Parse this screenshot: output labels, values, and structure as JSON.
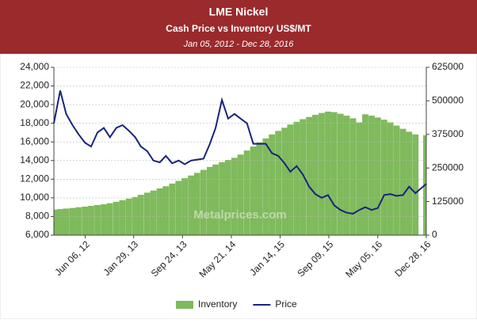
{
  "chart_data": {
    "type": "line",
    "title": "LME Nickel",
    "subtitle": "Cash Price vs Inventory US$/MT",
    "date_range": "Jan 05, 2012 - Dec 28, 2016",
    "watermark": "Metalprices.com",
    "x": [
      "2012-01-05",
      "2012-02-05",
      "2012-03-05",
      "2012-04-05",
      "2012-05-05",
      "2012-06-05",
      "2012-07-05",
      "2012-08-05",
      "2012-09-05",
      "2012-10-05",
      "2012-11-05",
      "2012-12-05",
      "2013-01-05",
      "2013-02-05",
      "2013-03-05",
      "2013-04-05",
      "2013-05-05",
      "2013-06-05",
      "2013-07-05",
      "2013-08-05",
      "2013-09-05",
      "2013-10-05",
      "2013-11-05",
      "2013-12-05",
      "2014-01-05",
      "2014-02-05",
      "2014-03-05",
      "2014-04-05",
      "2014-05-05",
      "2014-06-05",
      "2014-07-05",
      "2014-08-05",
      "2014-09-05",
      "2014-10-05",
      "2014-11-05",
      "2014-12-05",
      "2015-01-05",
      "2015-02-05",
      "2015-03-05",
      "2015-04-05",
      "2015-05-05",
      "2015-06-05",
      "2015-07-05",
      "2015-08-05",
      "2015-09-05",
      "2015-10-05",
      "2015-11-05",
      "2015-12-05",
      "2016-01-05",
      "2016-02-05",
      "2016-03-05",
      "2016-04-05",
      "2016-05-05",
      "2016-06-05",
      "2016-07-05",
      "2016-08-05",
      "2016-09-05",
      "2016-10-05",
      "2016-11-05",
      "2016-12-28"
    ],
    "xlim": [
      "2012-01-05",
      "2016-12-28"
    ],
    "xticks": [
      {
        "value": "2012-06-06",
        "label": "Jun 06, 12"
      },
      {
        "value": "2013-01-29",
        "label": "Jan 29, 13"
      },
      {
        "value": "2013-09-24",
        "label": "Sep 24, 13"
      },
      {
        "value": "2014-05-21",
        "label": "May 21, 14"
      },
      {
        "value": "2015-01-14",
        "label": "Jan 14, 15"
      },
      {
        "value": "2015-09-09",
        "label": "Sep 09, 15"
      },
      {
        "value": "2016-05-05",
        "label": "May 05, 16"
      },
      {
        "value": "2016-12-28",
        "label": "Dec 28, 16"
      }
    ],
    "ylim": [
      6000,
      24000
    ],
    "yticks": [
      {
        "value": 6000,
        "label": "6,000"
      },
      {
        "value": 8000,
        "label": "8,000"
      },
      {
        "value": 10000,
        "label": "10,000"
      },
      {
        "value": 12000,
        "label": "12,000"
      },
      {
        "value": 14000,
        "label": "14,000"
      },
      {
        "value": 16000,
        "label": "16,000"
      },
      {
        "value": 18000,
        "label": "18,000"
      },
      {
        "value": 20000,
        "label": "20,000"
      },
      {
        "value": 22000,
        "label": "22,000"
      },
      {
        "value": 24000,
        "label": "24,000"
      }
    ],
    "y2lim": [
      0,
      625000
    ],
    "y2ticks": [
      0,
      125000,
      250000,
      375000,
      500000,
      625000
    ],
    "grid": true,
    "legend": "bottom",
    "series": [
      {
        "name": "Inventory",
        "color": "#7fba5c",
        "axis": "y2",
        "kind": "bar",
        "values": [
          95000,
          97000,
          99000,
          101000,
          104000,
          106000,
          109000,
          112000,
          115000,
          119000,
          124000,
          130000,
          136000,
          142000,
          150000,
          158000,
          166000,
          174000,
          182000,
          192000,
          202000,
          212000,
          222000,
          232000,
          243000,
          254000,
          263000,
          272000,
          280000,
          288000,
          300000,
          315000,
          330000,
          345000,
          360000,
          375000,
          388000,
          400000,
          412000,
          422000,
          432000,
          440000,
          448000,
          455000,
          460000,
          458000,
          452000,
          445000,
          435000,
          420000,
          450000,
          445000,
          438000,
          430000,
          420000,
          408000,
          396000,
          385000,
          375000,
          372000
        ]
      },
      {
        "name": "Price",
        "color": "#1a237e",
        "values": [
          18000,
          21500,
          19000,
          17800,
          16800,
          15900,
          15500,
          17000,
          17500,
          16500,
          17500,
          17800,
          17200,
          16500,
          15500,
          15000,
          14000,
          13800,
          14500,
          13700,
          14000,
          13600,
          14000,
          14100,
          14200,
          15800,
          17500,
          20500,
          18500,
          19000,
          18500,
          18000,
          15800,
          15800,
          15800,
          14800,
          14500,
          13700,
          12800,
          13400,
          12500,
          11200,
          10400,
          10000,
          10300,
          9200,
          8700,
          8400,
          8300,
          8700,
          9000,
          8700,
          8900,
          10300,
          10400,
          10200,
          10300,
          11200,
          10500,
          11500
        ]
      }
    ]
  }
}
